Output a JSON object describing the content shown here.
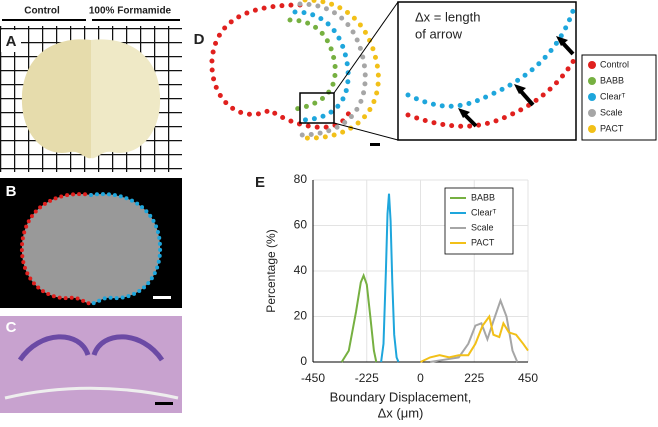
{
  "panels": {
    "A": {
      "label": "A",
      "left_title": "Control",
      "right_title": "100% Formamide"
    },
    "B": {
      "label": "B"
    },
    "C": {
      "label": "C"
    },
    "D": {
      "label": "D",
      "note": [
        "Δx = length",
        "of arrow"
      ],
      "legend": [
        {
          "name": "Control",
          "color": "#e0201e"
        },
        {
          "name": "BABB",
          "color": "#76b041"
        },
        {
          "name": "Clearᵀ",
          "color": "#1ea6dc"
        },
        {
          "name": "Scale",
          "color": "#a6a6a6"
        },
        {
          "name": "PACT",
          "color": "#f2c018"
        }
      ]
    }
  },
  "chart_data": {
    "type": "line",
    "panel_label": "E",
    "ylabel": "Percentage (%)",
    "xlabel": [
      "Boundary Displacement,",
      "Δx (μm)"
    ],
    "xlim": [
      -450,
      450
    ],
    "xticks": [
      -450,
      -225,
      0,
      225,
      450
    ],
    "ylim": [
      0,
      80
    ],
    "yticks": [
      0,
      20,
      40,
      60,
      80
    ],
    "grid": true,
    "legend": "upper right",
    "series": [
      {
        "name": "BABB",
        "color": "#76b041",
        "x": [
          -330,
          -300,
          -270,
          -250,
          -238,
          -225,
          -210,
          -195,
          -185
        ],
        "values": [
          0,
          5,
          22,
          35,
          38,
          34,
          20,
          5,
          0
        ]
      },
      {
        "name": "Clearᵀ",
        "color": "#1ea6dc",
        "x": [
          -165,
          -155,
          -145,
          -138,
          -132,
          -125,
          -118,
          -110,
          -100,
          -92
        ],
        "values": [
          0,
          8,
          40,
          65,
          74,
          62,
          35,
          12,
          2,
          0
        ]
      },
      {
        "name": "Scale",
        "color": "#a6a6a6",
        "x": [
          40,
          100,
          160,
          200,
          230,
          255,
          280,
          305,
          335,
          360,
          385,
          405
        ],
        "values": [
          0,
          1,
          2,
          8,
          16,
          17,
          10,
          18,
          27,
          20,
          5,
          0
        ]
      },
      {
        "name": "PACT",
        "color": "#f2c018",
        "x": [
          0,
          40,
          80,
          120,
          160,
          200,
          230,
          260,
          288,
          305,
          330,
          347,
          370,
          400,
          430,
          450
        ],
        "values": [
          0,
          2,
          3,
          2,
          3,
          3,
          8,
          16,
          20,
          12,
          11,
          17,
          13,
          12,
          8,
          5
        ]
      }
    ]
  }
}
